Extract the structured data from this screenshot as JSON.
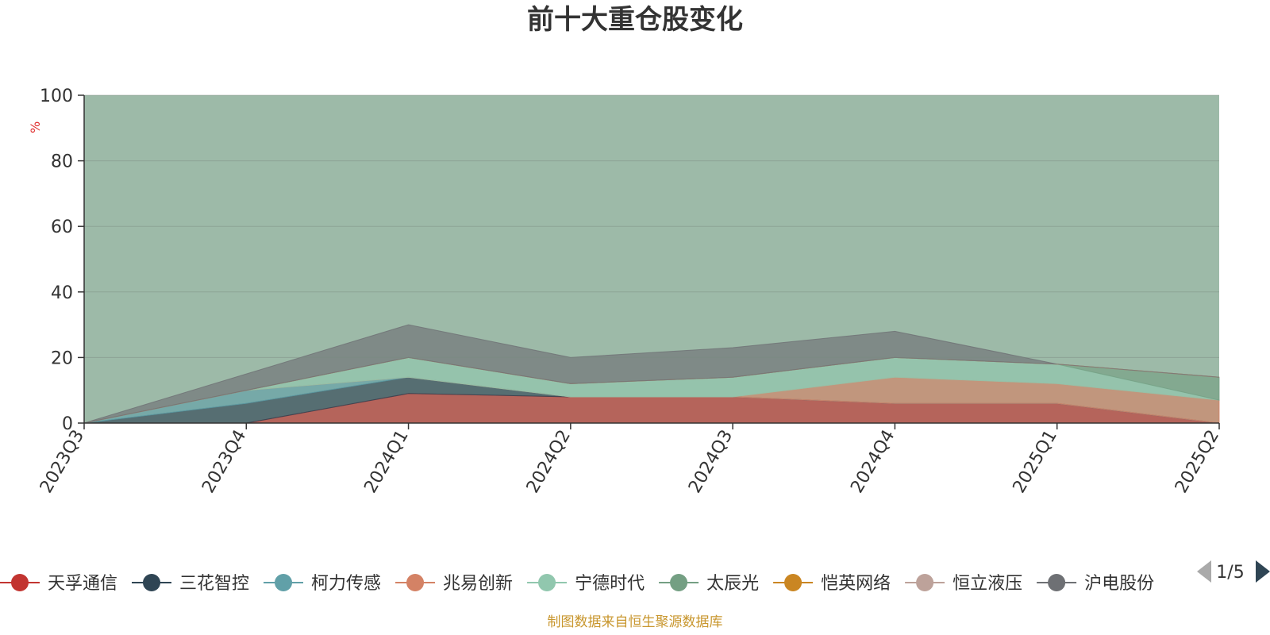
{
  "chart_data": {
    "type": "area",
    "stacked": true,
    "title": "前十大重仓股变化",
    "ylabel": "%",
    "ylim": [
      0,
      100
    ],
    "yticks": [
      0,
      20,
      40,
      60,
      80,
      100
    ],
    "categories": [
      "2023Q3",
      "2023Q4",
      "2024Q1",
      "2024Q2",
      "2024Q3",
      "2024Q4",
      "2025Q1",
      "2025Q2"
    ],
    "grid": true,
    "legend_position": "bottom",
    "series": [
      {
        "name": "天孚通信",
        "color": "#c23531",
        "values": [
          0,
          0,
          9,
          8,
          8,
          6,
          6,
          0
        ]
      },
      {
        "name": "三花智控",
        "color": "#2f4554",
        "values": [
          0,
          6,
          5,
          0,
          0,
          0,
          0,
          0
        ]
      },
      {
        "name": "柯力传感",
        "color": "#61a0a8",
        "values": [
          0,
          4,
          0,
          0,
          0,
          0,
          0,
          0
        ]
      },
      {
        "name": "兆易创新",
        "color": "#d48265",
        "values": [
          0,
          0,
          0,
          0,
          0,
          8,
          6,
          7
        ]
      },
      {
        "name": "宁德时代",
        "color": "#91c7ae",
        "values": [
          0,
          0,
          6,
          4,
          6,
          6,
          6,
          0
        ]
      },
      {
        "name": "太辰光",
        "color": "#749f83",
        "values": [
          0,
          0,
          0,
          0,
          0,
          0,
          0,
          7
        ]
      },
      {
        "name": "恺英网络",
        "color": "#ca8622",
        "values": [
          0,
          0,
          0,
          0,
          0,
          0,
          0,
          0
        ]
      },
      {
        "name": "恒立液压",
        "color": "#bda29a",
        "values": [
          0,
          0,
          0,
          0,
          0,
          0,
          0,
          0
        ]
      },
      {
        "name": "沪电股份",
        "color": "#6e7074",
        "values": [
          0,
          5,
          10,
          8,
          9,
          8,
          0,
          0
        ]
      }
    ],
    "page_indicator": "1/5"
  },
  "footer": {
    "source_text": "制图数据来自恒生聚源数据库"
  }
}
